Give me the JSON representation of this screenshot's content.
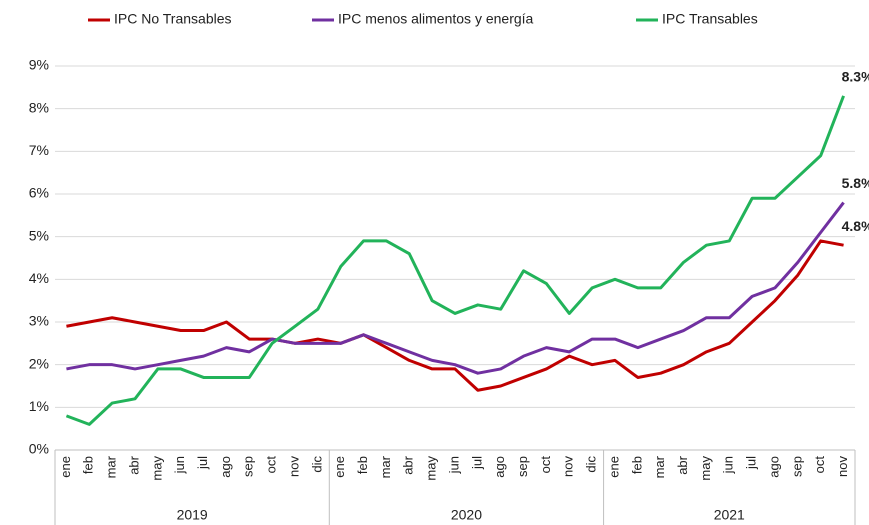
{
  "chart_data": {
    "type": "line",
    "categories": [
      "ene",
      "feb",
      "mar",
      "abr",
      "may",
      "jun",
      "jul",
      "ago",
      "sep",
      "oct",
      "nov",
      "dic",
      "ene",
      "feb",
      "mar",
      "abr",
      "may",
      "jun",
      "jul",
      "ago",
      "sep",
      "oct",
      "nov",
      "dic",
      "ene",
      "feb",
      "mar",
      "abr",
      "may",
      "jun",
      "jul",
      "ago",
      "sep",
      "oct",
      "nov"
    ],
    "groups": [
      {
        "label": "2019",
        "size": 12
      },
      {
        "label": "2020",
        "size": 12
      },
      {
        "label": "2021",
        "size": 11
      }
    ],
    "series": [
      {
        "name": "IPC No Transables",
        "color": "#c00000",
        "values": [
          2.9,
          3.0,
          3.1,
          3.0,
          2.9,
          2.8,
          2.8,
          3.0,
          2.6,
          2.6,
          2.5,
          2.6,
          2.5,
          2.7,
          2.4,
          2.1,
          1.9,
          1.9,
          1.4,
          1.5,
          1.7,
          1.9,
          2.2,
          2.0,
          2.1,
          1.7,
          1.8,
          2.0,
          2.3,
          2.5,
          3.0,
          3.5,
          4.1,
          4.9,
          4.8
        ],
        "value_labels": [
          null,
          null,
          null,
          null,
          null,
          null,
          null,
          null,
          null,
          null,
          null,
          null,
          null,
          null,
          null,
          null,
          null,
          null,
          null,
          null,
          null,
          null,
          null,
          null,
          null,
          null,
          null,
          null,
          null,
          null,
          null,
          null,
          null,
          null,
          "4.8%"
        ]
      },
      {
        "name": "IPC menos alimentos y energía",
        "color": "#7030a0",
        "values": [
          1.9,
          2.0,
          2.0,
          1.9,
          2.0,
          2.1,
          2.2,
          2.4,
          2.3,
          2.6,
          2.5,
          2.5,
          2.5,
          2.7,
          2.5,
          2.3,
          2.1,
          2.0,
          1.8,
          1.9,
          2.2,
          2.4,
          2.3,
          2.6,
          2.6,
          2.4,
          2.6,
          2.8,
          3.1,
          3.1,
          3.6,
          3.8,
          4.4,
          5.1,
          5.8
        ],
        "value_labels": [
          null,
          null,
          null,
          null,
          null,
          null,
          null,
          null,
          null,
          null,
          null,
          null,
          null,
          null,
          null,
          null,
          null,
          null,
          null,
          null,
          null,
          null,
          null,
          null,
          null,
          null,
          null,
          null,
          null,
          null,
          null,
          null,
          null,
          null,
          "5.8%"
        ]
      },
      {
        "name": "IPC Transables",
        "color": "#22b35a",
        "values": [
          0.8,
          0.6,
          1.1,
          1.2,
          1.9,
          1.9,
          1.7,
          1.7,
          1.7,
          2.5,
          2.9,
          3.3,
          4.3,
          4.9,
          4.9,
          4.6,
          3.5,
          3.2,
          3.4,
          3.3,
          4.2,
          3.9,
          3.2,
          3.8,
          4.0,
          3.8,
          3.8,
          4.4,
          4.8,
          4.9,
          5.9,
          5.9,
          6.4,
          6.9,
          8.3
        ],
        "value_labels": [
          null,
          null,
          null,
          null,
          null,
          null,
          null,
          null,
          null,
          null,
          null,
          null,
          null,
          null,
          null,
          null,
          null,
          null,
          null,
          null,
          null,
          null,
          null,
          null,
          null,
          null,
          null,
          null,
          null,
          null,
          null,
          null,
          null,
          null,
          "8.3%"
        ]
      }
    ],
    "ylim": [
      0,
      9
    ],
    "yticks": [
      {
        "value": 0,
        "label": "0%"
      },
      {
        "value": 1,
        "label": "1%"
      },
      {
        "value": 2,
        "label": "2%"
      },
      {
        "value": 3,
        "label": "3%"
      },
      {
        "value": 4,
        "label": "4%"
      },
      {
        "value": 5,
        "label": "5%"
      },
      {
        "value": 6,
        "label": "6%"
      },
      {
        "value": 7,
        "label": "7%"
      },
      {
        "value": 8,
        "label": "8%"
      },
      {
        "value": 9,
        "label": "9%"
      }
    ],
    "grid": true
  }
}
